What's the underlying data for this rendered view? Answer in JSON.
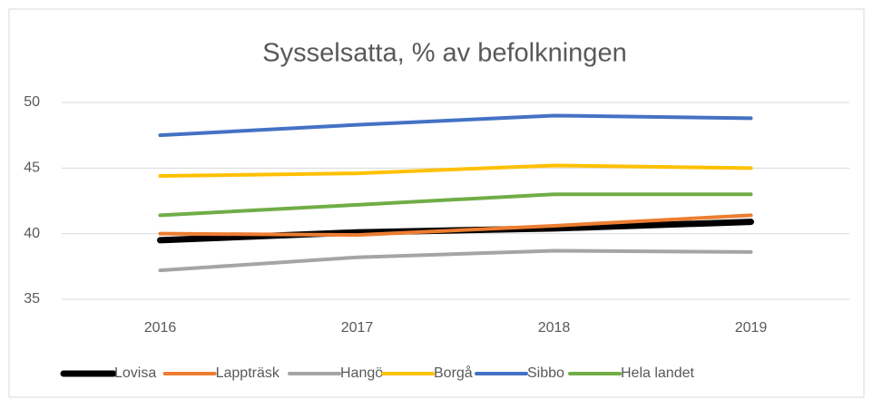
{
  "chart_data": {
    "type": "line",
    "title": "Sysselsatta, % av befolkningen",
    "categories": [
      "2016",
      "2017",
      "2018",
      "2019"
    ],
    "series": [
      {
        "name": "Lovisa",
        "color": "#000000",
        "values": [
          39.5,
          40.1,
          40.4,
          40.9
        ]
      },
      {
        "name": "Lappträsk",
        "color": "#ed7d31",
        "values": [
          40.0,
          39.9,
          40.6,
          41.4
        ]
      },
      {
        "name": "Hangö",
        "color": "#a5a5a5",
        "values": [
          37.2,
          38.2,
          38.7,
          38.6
        ]
      },
      {
        "name": "Borgå",
        "color": "#ffc000",
        "values": [
          44.4,
          44.6,
          45.2,
          45.0
        ]
      },
      {
        "name": "Sibbo",
        "color": "#4472c4",
        "values": [
          47.5,
          48.3,
          49.0,
          48.8
        ]
      },
      {
        "name": "Hela landet",
        "color": "#70ad47",
        "values": [
          41.4,
          42.2,
          43.0,
          43.0
        ]
      }
    ],
    "ylim": [
      35,
      50
    ],
    "yticks": [
      35,
      40,
      45,
      50
    ],
    "grid": true,
    "legend": "bottom"
  }
}
